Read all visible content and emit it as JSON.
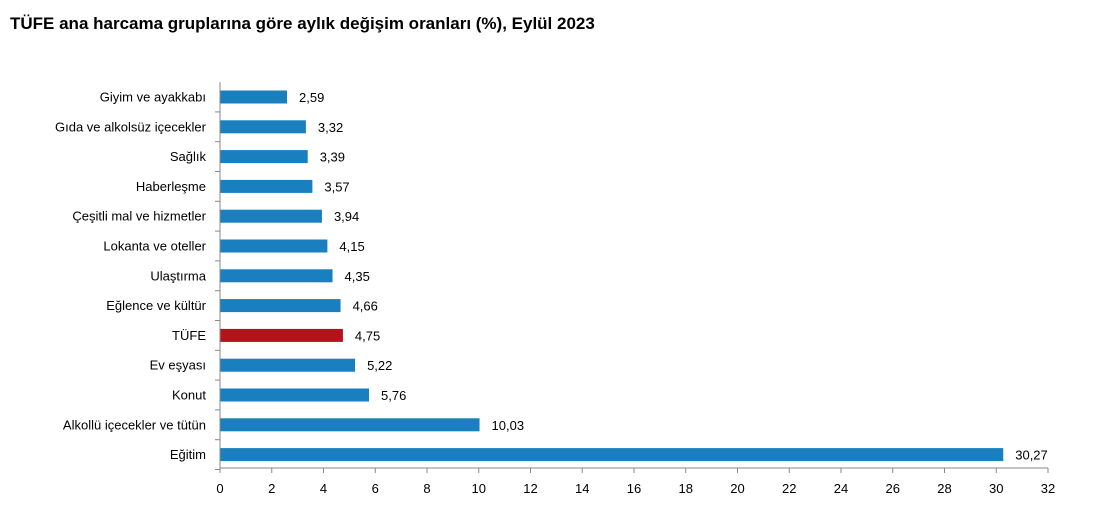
{
  "title": "TÜFE ana harcama gruplarına göre aylık değişim oranları (%), Eylül 2023",
  "colors": {
    "bar": "#1a7fbf",
    "highlight": "#b5121b",
    "axis": "#888888"
  },
  "chart_data": {
    "type": "bar",
    "orientation": "horizontal",
    "title": "TÜFE ana harcama gruplarına göre aylık değişim oranları (%), Eylül 2023",
    "categories": [
      "Giyim ve ayakkabı",
      "Gıda ve alkolsüz içecekler",
      "Sağlık",
      "Haberleşme",
      "Çeşitli mal ve hizmetler",
      "Lokanta ve oteller",
      "Ulaştırma",
      "Eğlence ve kültür",
      "TÜFE",
      "Ev eşyası",
      "Konut",
      "Alkollü içecekler ve tütün",
      "Eğitim"
    ],
    "values": [
      2.59,
      3.32,
      3.39,
      3.57,
      3.94,
      4.15,
      4.35,
      4.66,
      4.75,
      5.22,
      5.76,
      10.03,
      30.27
    ],
    "value_labels": [
      "2,59",
      "3,32",
      "3,39",
      "3,57",
      "3,94",
      "4,15",
      "4,35",
      "4,66",
      "4,75",
      "5,22",
      "5,76",
      "10,03",
      "30,27"
    ],
    "highlight_category": "TÜFE",
    "xlim": [
      0,
      32
    ],
    "xticks": [
      0,
      2,
      4,
      6,
      8,
      10,
      12,
      14,
      16,
      18,
      20,
      22,
      24,
      26,
      28,
      30,
      32
    ],
    "xlabel": "",
    "ylabel": "",
    "grid": false,
    "legend": "none"
  }
}
